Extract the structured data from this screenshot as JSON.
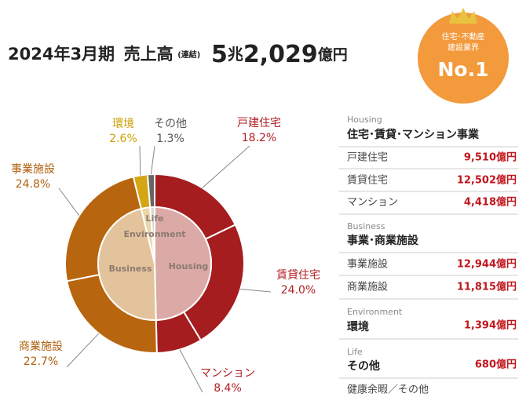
{
  "header": {
    "period": "2024年3月期",
    "label": "売上高",
    "note": "(連結)",
    "amount_parts": [
      "5",
      "兆",
      "2,029",
      "億円"
    ]
  },
  "badge": {
    "lines": [
      "住宅･不動産",
      "建設業界"
    ],
    "rank": "No.1"
  },
  "chart_data": {
    "type": "donut",
    "categories": [
      "戸建住宅",
      "賃貸住宅",
      "マンション",
      "商業施設",
      "事業施設",
      "環境",
      "その他"
    ],
    "values": [
      18.2,
      24.0,
      8.4,
      22.7,
      24.8,
      2.6,
      1.3
    ],
    "value_labels": [
      "18.2%",
      "24.0%",
      "8.4%",
      "22.7%",
      "24.8%",
      "2.6%",
      "1.3%"
    ],
    "colors": [
      "#a51d1f",
      "#a51d1f",
      "#a51d1f",
      "#b8650f",
      "#b8650f",
      "#d4a514",
      "#666666"
    ],
    "label_colors": [
      "#b01e23",
      "#b01e23",
      "#b01e23",
      "#b0600f",
      "#b0600f",
      "#c99e00",
      "#555555"
    ],
    "inner": {
      "categories": [
        "Housing",
        "Business",
        "Environment",
        "Life"
      ],
      "values": [
        50.6,
        47.5,
        2.6,
        1.3
      ],
      "colors": [
        "#dba9a6",
        "#e3c39c",
        "#e9d7a8",
        "#d8d8d8"
      ]
    }
  },
  "table": {
    "sections": [
      {
        "label": "Housing",
        "title": "住宅･賃貸･マンション事業",
        "rows": [
          [
            "戸建住宅",
            "9,510億円"
          ],
          [
            "賃貸住宅",
            "12,502億円"
          ],
          [
            "マンション",
            "4,418億円"
          ]
        ]
      },
      {
        "label": "Business",
        "title": "事業･商業施設",
        "rows": [
          [
            "事業施設",
            "12,944億円"
          ],
          [
            "商業施設",
            "11,815億円"
          ]
        ]
      },
      {
        "label": "Environment",
        "title": "環境",
        "amount": "1,394億円"
      },
      {
        "label": "Life",
        "title": "その他",
        "amount": "680億円",
        "note": "健康余暇／その他"
      }
    ]
  }
}
